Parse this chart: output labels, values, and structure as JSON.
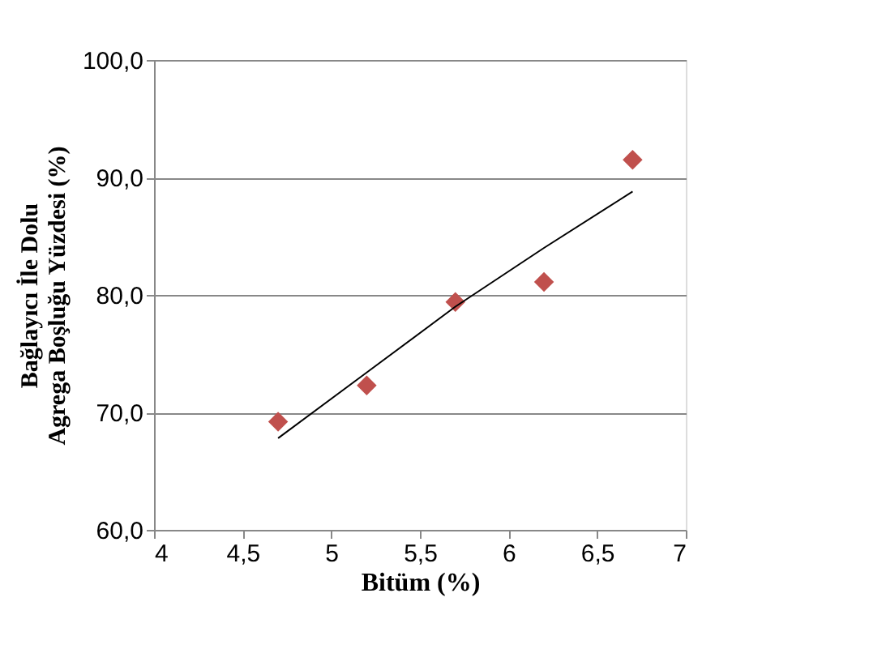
{
  "chart_data": {
    "type": "scatter",
    "xlabel": "Bitüm (%)",
    "ylabel": "Bağlayıcı İle Dolu\nAgrega Boşluğu Yüzdesi  (%)",
    "series": [
      {
        "type": "scatter",
        "color": "#c0504d",
        "marker": "diamond",
        "x": [
          4.7,
          5.2,
          5.7,
          6.2,
          6.7
        ],
        "values": [
          69.2,
          72.3,
          79.4,
          81.1,
          91.5
        ]
      },
      {
        "type": "line",
        "color": "#000000",
        "marker": "none",
        "line_style": "solid",
        "x": [
          4.7,
          5.2,
          5.7,
          6.2,
          6.7
        ],
        "values": [
          67.8,
          73.4,
          79.0,
          84.0,
          88.8
        ]
      }
    ],
    "xlim": [
      4,
      7
    ],
    "xticks": [
      4,
      {
        "value": 4.5,
        "label": "4,5"
      },
      5,
      {
        "value": 5.5,
        "label": "5,5"
      },
      6,
      {
        "value": 6.5,
        "label": "6,5"
      },
      7
    ],
    "ylim": [
      60,
      100
    ],
    "yticks": [
      {
        "value": 60,
        "label": "60,0"
      },
      {
        "value": 70,
        "label": "70,0"
      },
      {
        "value": 80,
        "label": "80,0"
      },
      {
        "value": 90,
        "label": "90,0"
      },
      {
        "value": 100,
        "label": "100,0"
      }
    ],
    "grid": "y",
    "legend": false
  }
}
